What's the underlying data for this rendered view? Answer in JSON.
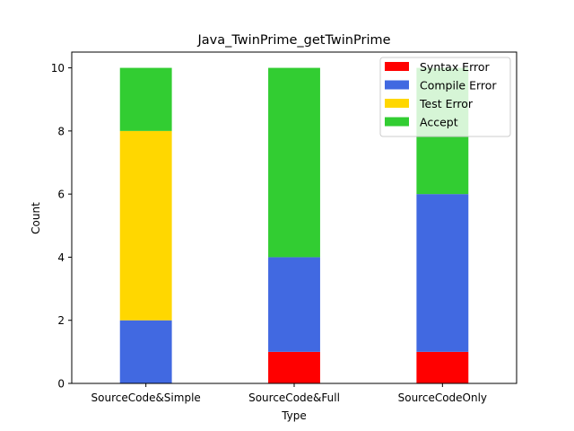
{
  "chart_data": {
    "type": "bar",
    "stacked": true,
    "title": "Java_TwinPrime_getTwinPrime",
    "xlabel": "Type",
    "ylabel": "Count",
    "categories": [
      "SourceCode&Simple",
      "SourceCode&Full",
      "SourceCodeOnly"
    ],
    "series": [
      {
        "name": "Syntax Error",
        "color": "#ff0000",
        "values": [
          0,
          1,
          1
        ]
      },
      {
        "name": "Compile Error",
        "color": "#4169e1",
        "values": [
          2,
          3,
          5
        ]
      },
      {
        "name": "Test Error",
        "color": "#ffd700",
        "values": [
          6,
          0,
          0
        ]
      },
      {
        "name": "Accept",
        "color": "#32cd32",
        "values": [
          2,
          6,
          4
        ]
      }
    ],
    "ylim": [
      0,
      10.5
    ],
    "yticks": [
      "0",
      "2",
      "4",
      "6",
      "8",
      "10"
    ],
    "grid": false,
    "legend_position": "top-right"
  }
}
